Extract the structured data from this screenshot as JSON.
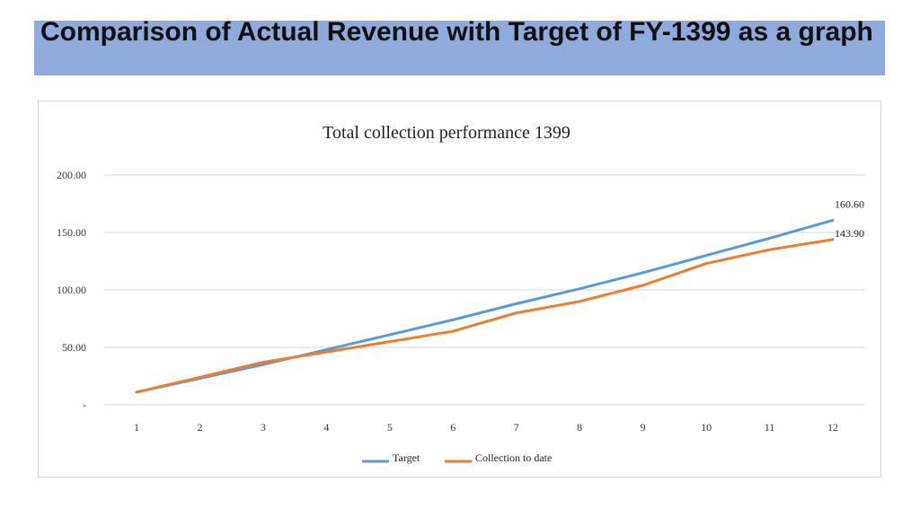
{
  "page": {
    "title": "Comparison of Actual Revenue with Target of FY-1399 as a graph"
  },
  "chart_data": {
    "type": "line",
    "title": "Total collection performance 1399",
    "xlabel": "",
    "ylabel": "",
    "categories": [
      "1",
      "2",
      "3",
      "4",
      "5",
      "6",
      "7",
      "8",
      "9",
      "10",
      "11",
      "12"
    ],
    "y_ticks": [
      {
        "value": 0,
        "label": "-"
      },
      {
        "value": 50,
        "label": "50.00"
      },
      {
        "value": 100,
        "label": "100.00"
      },
      {
        "value": 150,
        "label": "150.00"
      },
      {
        "value": 200,
        "label": "200.00"
      }
    ],
    "ylim": [
      0,
      200
    ],
    "grid": true,
    "legend_position": "bottom",
    "series": [
      {
        "name": "Target",
        "color": "#5b9bd5",
        "values": [
          11,
          23,
          35,
          48,
          61,
          74,
          88,
          101,
          115,
          130,
          145,
          160.6
        ],
        "end_label": "160.60"
      },
      {
        "name": "Collection to date",
        "color": "#ed7d31",
        "values": [
          11,
          24,
          37,
          46,
          55,
          64,
          80,
          90,
          104,
          123,
          135,
          143.9
        ],
        "end_label": "143.90"
      }
    ]
  }
}
